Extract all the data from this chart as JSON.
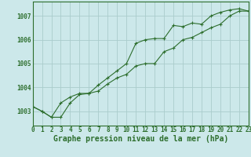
{
  "xlabel": "Graphe pression niveau de la mer (hPa)",
  "bg_color": "#cce8ea",
  "grid_color": "#aacccc",
  "line_color": "#2d6e2d",
  "marker_color": "#2d6e2d",
  "x_min": 0,
  "x_max": 23,
  "y_min": 1002.4,
  "y_max": 1007.6,
  "yticks": [
    1003,
    1004,
    1005,
    1006,
    1007
  ],
  "series1": [
    [
      0,
      1003.2
    ],
    [
      1,
      1003.0
    ],
    [
      2,
      1002.75
    ],
    [
      3,
      1002.75
    ],
    [
      4,
      1003.35
    ],
    [
      5,
      1003.7
    ],
    [
      6,
      1003.75
    ],
    [
      7,
      1004.1
    ],
    [
      8,
      1004.4
    ],
    [
      9,
      1004.7
    ],
    [
      10,
      1005.0
    ],
    [
      11,
      1005.85
    ],
    [
      12,
      1006.0
    ],
    [
      13,
      1006.05
    ],
    [
      14,
      1006.05
    ],
    [
      15,
      1006.6
    ],
    [
      16,
      1006.55
    ],
    [
      17,
      1006.7
    ],
    [
      18,
      1006.65
    ],
    [
      19,
      1007.0
    ],
    [
      20,
      1007.15
    ],
    [
      21,
      1007.25
    ],
    [
      22,
      1007.3
    ],
    [
      23,
      1007.2
    ]
  ],
  "series2": [
    [
      0,
      1003.2
    ],
    [
      1,
      1003.0
    ],
    [
      2,
      1002.75
    ],
    [
      3,
      1003.35
    ],
    [
      4,
      1003.6
    ],
    [
      5,
      1003.75
    ],
    [
      6,
      1003.75
    ],
    [
      7,
      1003.85
    ],
    [
      8,
      1004.15
    ],
    [
      9,
      1004.4
    ],
    [
      10,
      1004.55
    ],
    [
      11,
      1004.9
    ],
    [
      12,
      1005.0
    ],
    [
      13,
      1005.0
    ],
    [
      14,
      1005.5
    ],
    [
      15,
      1005.65
    ],
    [
      16,
      1006.0
    ],
    [
      17,
      1006.1
    ],
    [
      18,
      1006.3
    ],
    [
      19,
      1006.5
    ],
    [
      20,
      1006.65
    ],
    [
      21,
      1007.0
    ],
    [
      22,
      1007.2
    ],
    [
      23,
      1007.2
    ]
  ],
  "tick_fontsize": 5.5,
  "xlabel_fontsize": 7.0
}
